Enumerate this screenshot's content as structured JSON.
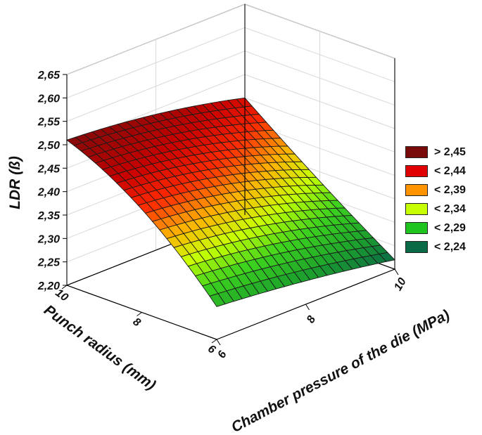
{
  "chart_data": {
    "type": "surface3d",
    "title": "",
    "zlabel": "LDR (ß)",
    "xlabel": "Punch radius (mm)",
    "ylabel": "Chamber pressure of the die (MPa)",
    "x_ticks": [
      "10",
      "8",
      "6"
    ],
    "y_ticks": [
      "6",
      "8",
      "10"
    ],
    "z_ticks": [
      "2,20",
      "2,25",
      "2,30",
      "2,35",
      "2,40",
      "2,45",
      "2,50",
      "2,55",
      "2,60",
      "2,65"
    ],
    "xlim": [
      6,
      10
    ],
    "ylim": [
      6,
      10
    ],
    "zlim": [
      2.2,
      2.65
    ],
    "grid": true,
    "legend_position": "right",
    "legend": [
      {
        "label": "> 2,45",
        "color": "#7a0b0b"
      },
      {
        "label": "< 2,44",
        "color": "#e00000"
      },
      {
        "label": "< 2,39",
        "color": "#ff9400"
      },
      {
        "label": "< 2,34",
        "color": "#c8ff00"
      },
      {
        "label": "< 2,29",
        "color": "#1fc41f"
      },
      {
        "label": "< 2,24",
        "color": "#0a6a45"
      }
    ],
    "surface_corners": [
      {
        "punch_radius": 10,
        "chamber_pressure": 6,
        "ldr": 2.51
      },
      {
        "punch_radius": 10,
        "chamber_pressure": 10,
        "ldr": 2.45
      },
      {
        "punch_radius": 6,
        "chamber_pressure": 6,
        "ldr": 2.27
      },
      {
        "punch_radius": 6,
        "chamber_pressure": 10,
        "ldr": 2.22
      }
    ],
    "surface_samples": {
      "punch_radius": [
        10,
        8,
        6
      ],
      "chamber_pressure": [
        6,
        8,
        10
      ],
      "ldr": [
        [
          2.51,
          2.49,
          2.45
        ],
        [
          2.42,
          2.39,
          2.33
        ],
        [
          2.27,
          2.25,
          2.22
        ]
      ]
    }
  }
}
